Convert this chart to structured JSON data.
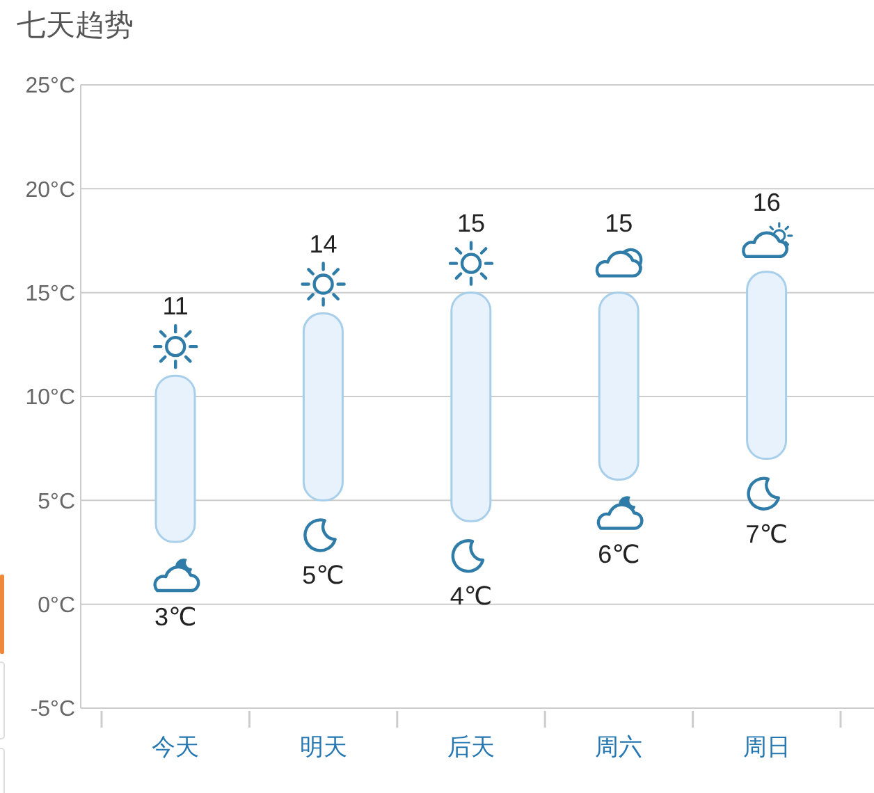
{
  "chart_data": {
    "type": "bar",
    "title": "七天趋势",
    "categories": [
      "今天",
      "明天",
      "后天",
      "周六",
      "周日"
    ],
    "base": [
      3,
      5,
      4,
      6,
      7
    ],
    "values": [
      8,
      9,
      11,
      9,
      9
    ],
    "color": "#e8f2fd",
    "ylim": [
      -5,
      25
    ],
    "yticks": [
      {
        "value": -5,
        "label": "-5°C"
      },
      {
        "value": 0,
        "label": "0°C"
      },
      {
        "value": 5,
        "label": "5°C"
      },
      {
        "value": 10,
        "label": "10°C"
      },
      {
        "value": 15,
        "label": "15°C"
      },
      {
        "value": 20,
        "label": "20°C"
      },
      {
        "value": 25,
        "label": "25°C"
      }
    ],
    "grid": "y",
    "annotations": [
      {
        "text": "11",
        "x": "今天",
        "y": 11
      },
      {
        "text": "3℃",
        "x": "今天",
        "y": 3
      },
      {
        "text": "14",
        "x": "明天",
        "y": 14
      },
      {
        "text": "5℃",
        "x": "明天",
        "y": 5
      },
      {
        "text": "15",
        "x": "后天",
        "y": 15
      },
      {
        "text": "4℃",
        "x": "后天",
        "y": 4
      },
      {
        "text": "15",
        "x": "周六",
        "y": 15
      },
      {
        "text": "6℃",
        "x": "周六",
        "y": 6
      },
      {
        "text": "16",
        "x": "周日",
        "y": 16
      },
      {
        "text": "7℃",
        "x": "周日",
        "y": 7
      }
    ]
  }
}
